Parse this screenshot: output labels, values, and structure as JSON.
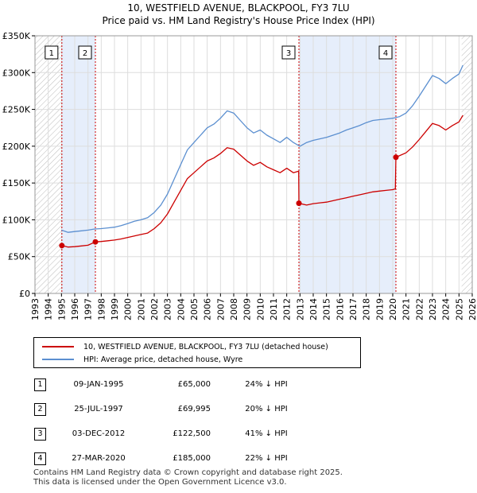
{
  "title_line1": "10, WESTFIELD AVENUE, BLACKPOOL, FY3 7LU",
  "title_line2": "Price paid vs. HM Land Registry's House Price Index (HPI)",
  "legend": {
    "property_label": "10, WESTFIELD AVENUE, BLACKPOOL, FY3 7LU (detached house)",
    "hpi_label": "HPI: Average price, detached house, Wyre"
  },
  "colors": {
    "property": "#cc0000",
    "hpi": "#5b8fd0",
    "band": "#e6eefb"
  },
  "transactions": [
    {
      "num": "1",
      "date": "09-JAN-1995",
      "price": "£65,000",
      "hpi": "24% ↓ HPI"
    },
    {
      "num": "2",
      "date": "25-JUL-1997",
      "price": "£69,995",
      "hpi": "20% ↓ HPI"
    },
    {
      "num": "3",
      "date": "03-DEC-2012",
      "price": "£122,500",
      "hpi": "41% ↓ HPI"
    },
    {
      "num": "4",
      "date": "27-MAR-2020",
      "price": "£185,000",
      "hpi": "22% ↓ HPI"
    }
  ],
  "footer_line1": "Contains HM Land Registry data © Crown copyright and database right 2025.",
  "footer_line2": "This data is licensed under the Open Government Licence v3.0.",
  "chart_data": {
    "type": "line",
    "title": "10, WESTFIELD AVENUE, BLACKPOOL, FY3 7LU — Price paid vs. HM Land Registry's House Price Index (HPI)",
    "xlim": [
      1993,
      2026
    ],
    "ylim": [
      0,
      350000
    ],
    "x_ticks": [
      "1993",
      "1994",
      "1995",
      "1996",
      "1997",
      "1998",
      "1999",
      "2000",
      "2001",
      "2002",
      "2003",
      "2004",
      "2005",
      "2006",
      "2007",
      "2008",
      "2009",
      "2010",
      "2011",
      "2012",
      "2013",
      "2014",
      "2015",
      "2016",
      "2017",
      "2018",
      "2019",
      "2020",
      "2021",
      "2022",
      "2023",
      "2024",
      "2025",
      "2026"
    ],
    "y_ticks": [
      {
        "value": 0,
        "label": "£0"
      },
      {
        "value": 50000,
        "label": "£50K"
      },
      {
        "value": 100000,
        "label": "£100K"
      },
      {
        "value": 150000,
        "label": "£150K"
      },
      {
        "value": 200000,
        "label": "£200K"
      },
      {
        "value": 250000,
        "label": "£250K"
      },
      {
        "value": 300000,
        "label": "£300K"
      },
      {
        "value": 350000,
        "label": "£350K"
      }
    ],
    "hatched_before": 1995.0,
    "hatched_after": 2025.2,
    "shaded_bands": [
      [
        1995.03,
        1997.56
      ],
      [
        2012.92,
        2020.24
      ]
    ],
    "sale_markers": [
      {
        "label": "1",
        "x": 1995.03,
        "y": 65000
      },
      {
        "label": "2",
        "x": 1997.56,
        "y": 69995
      },
      {
        "label": "3",
        "x": 2012.92,
        "y": 122500
      },
      {
        "label": "4",
        "x": 2020.24,
        "y": 185000
      }
    ],
    "series": [
      {
        "name": "HPI: Average price, detached house, Wyre",
        "points": [
          [
            1995.0,
            86000
          ],
          [
            1995.5,
            83000
          ],
          [
            1996.0,
            84000
          ],
          [
            1996.5,
            85000
          ],
          [
            1997.0,
            86000
          ],
          [
            1997.5,
            87500
          ],
          [
            1998.0,
            88000
          ],
          [
            1998.5,
            89000
          ],
          [
            1999.0,
            90000
          ],
          [
            1999.5,
            92000
          ],
          [
            2000.0,
            95000
          ],
          [
            2000.5,
            98000
          ],
          [
            2001.0,
            100000
          ],
          [
            2001.5,
            103000
          ],
          [
            2002.0,
            110000
          ],
          [
            2002.5,
            120000
          ],
          [
            2003.0,
            135000
          ],
          [
            2003.5,
            155000
          ],
          [
            2004.0,
            175000
          ],
          [
            2004.5,
            195000
          ],
          [
            2005.0,
            205000
          ],
          [
            2005.5,
            215000
          ],
          [
            2006.0,
            225000
          ],
          [
            2006.5,
            230000
          ],
          [
            2007.0,
            238000
          ],
          [
            2007.5,
            248000
          ],
          [
            2008.0,
            245000
          ],
          [
            2008.5,
            235000
          ],
          [
            2009.0,
            225000
          ],
          [
            2009.5,
            218000
          ],
          [
            2010.0,
            222000
          ],
          [
            2010.5,
            215000
          ],
          [
            2011.0,
            210000
          ],
          [
            2011.5,
            205000
          ],
          [
            2012.0,
            212000
          ],
          [
            2012.5,
            205000
          ],
          [
            2013.0,
            200000
          ],
          [
            2013.5,
            205000
          ],
          [
            2014.0,
            208000
          ],
          [
            2014.5,
            210000
          ],
          [
            2015.0,
            212000
          ],
          [
            2015.5,
            215000
          ],
          [
            2016.0,
            218000
          ],
          [
            2016.5,
            222000
          ],
          [
            2017.0,
            225000
          ],
          [
            2017.5,
            228000
          ],
          [
            2018.0,
            232000
          ],
          [
            2018.5,
            235000
          ],
          [
            2019.0,
            236000
          ],
          [
            2019.5,
            237000
          ],
          [
            2020.0,
            238000
          ],
          [
            2020.5,
            240000
          ],
          [
            2021.0,
            245000
          ],
          [
            2021.5,
            255000
          ],
          [
            2022.0,
            268000
          ],
          [
            2022.5,
            282000
          ],
          [
            2023.0,
            296000
          ],
          [
            2023.5,
            292000
          ],
          [
            2024.0,
            285000
          ],
          [
            2024.5,
            292000
          ],
          [
            2025.0,
            298000
          ],
          [
            2025.3,
            310000
          ]
        ]
      },
      {
        "name": "10, WESTFIELD AVENUE, BLACKPOOL, FY3 7LU (detached house)",
        "points": [
          [
            1995.03,
            65000
          ],
          [
            1995.5,
            63000
          ],
          [
            1996.0,
            63500
          ],
          [
            1996.5,
            64500
          ],
          [
            1997.0,
            65500
          ],
          [
            1997.56,
            69995
          ],
          [
            1998.0,
            70500
          ],
          [
            1998.5,
            71500
          ],
          [
            1999.0,
            72500
          ],
          [
            1999.5,
            74000
          ],
          [
            2000.0,
            76000
          ],
          [
            2000.5,
            78000
          ],
          [
            2001.0,
            80000
          ],
          [
            2001.5,
            82000
          ],
          [
            2002.0,
            88000
          ],
          [
            2002.5,
            96000
          ],
          [
            2003.0,
            108000
          ],
          [
            2003.5,
            124000
          ],
          [
            2004.0,
            140000
          ],
          [
            2004.5,
            156000
          ],
          [
            2005.0,
            164000
          ],
          [
            2005.5,
            172000
          ],
          [
            2006.0,
            180000
          ],
          [
            2006.5,
            184000
          ],
          [
            2007.0,
            190000
          ],
          [
            2007.5,
            198000
          ],
          [
            2008.0,
            196000
          ],
          [
            2008.5,
            188000
          ],
          [
            2009.0,
            180000
          ],
          [
            2009.5,
            174000
          ],
          [
            2010.0,
            178000
          ],
          [
            2010.5,
            172000
          ],
          [
            2011.0,
            168000
          ],
          [
            2011.5,
            164000
          ],
          [
            2012.0,
            170000
          ],
          [
            2012.5,
            164000
          ],
          [
            2012.9,
            166000
          ],
          [
            2012.92,
            122500
          ],
          [
            2013.5,
            120000
          ],
          [
            2014.0,
            122000
          ],
          [
            2014.5,
            123000
          ],
          [
            2015.0,
            124000
          ],
          [
            2015.5,
            126000
          ],
          [
            2016.0,
            128000
          ],
          [
            2016.5,
            130000
          ],
          [
            2017.0,
            132000
          ],
          [
            2017.5,
            134000
          ],
          [
            2018.0,
            136000
          ],
          [
            2018.5,
            138000
          ],
          [
            2019.0,
            139000
          ],
          [
            2019.5,
            140000
          ],
          [
            2020.0,
            141000
          ],
          [
            2020.2,
            142000
          ],
          [
            2020.24,
            185000
          ],
          [
            2020.5,
            187000
          ],
          [
            2021.0,
            191000
          ],
          [
            2021.5,
            199000
          ],
          [
            2022.0,
            209000
          ],
          [
            2022.5,
            220000
          ],
          [
            2023.0,
            231000
          ],
          [
            2023.5,
            228000
          ],
          [
            2024.0,
            222000
          ],
          [
            2024.5,
            228000
          ],
          [
            2025.0,
            233000
          ],
          [
            2025.3,
            242000
          ]
        ]
      }
    ]
  }
}
